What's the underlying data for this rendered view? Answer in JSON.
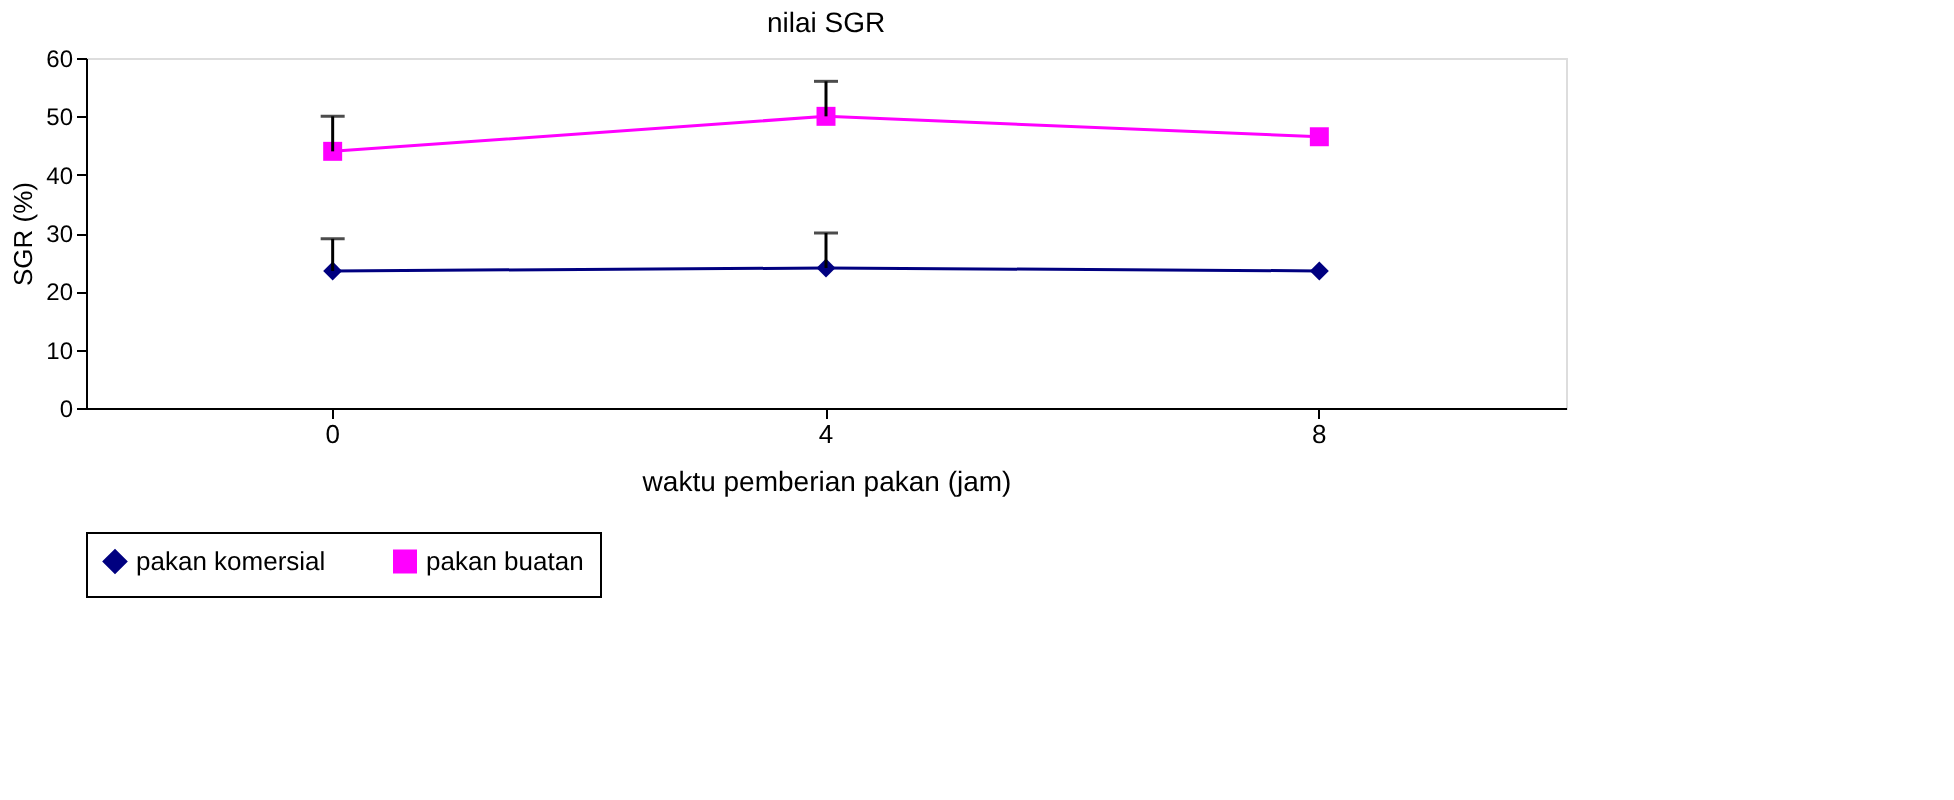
{
  "chart_data": {
    "type": "line",
    "title": "nilai SGR",
    "xlabel": "waktu pemberian pakan (jam)",
    "ylabel": "SGR (%)",
    "categories": [
      "0",
      "4",
      "8"
    ],
    "series": [
      {
        "name": "pakan komersial",
        "color": "#000080",
        "marker": "diamond",
        "values": [
          23.5,
          24,
          23.5
        ],
        "errors": [
          [
            23.5,
            29
          ],
          [
            24,
            30
          ],
          null
        ]
      },
      {
        "name": "pakan buatan",
        "color": "#ff00ff",
        "marker": "square",
        "values": [
          44,
          50,
          46.5
        ],
        "errors": [
          [
            44,
            50
          ],
          [
            50,
            56
          ],
          null
        ]
      }
    ],
    "ylim": [
      0,
      60
    ],
    "yticks": [
      0,
      10,
      20,
      30,
      40,
      50,
      60
    ],
    "grid": false,
    "legend": "bottom"
  }
}
